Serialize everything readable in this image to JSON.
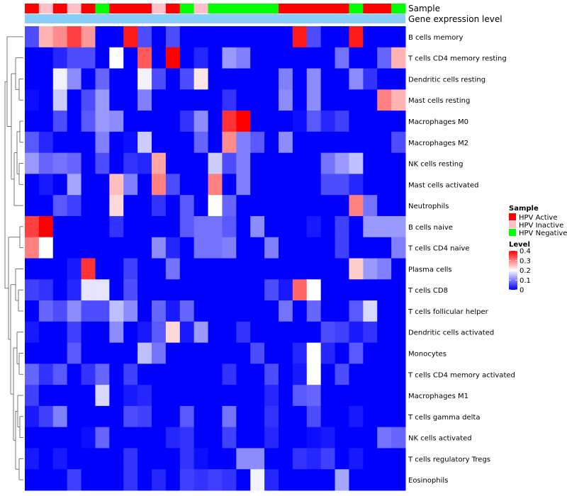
{
  "chart_data": {
    "type": "heatmap",
    "title": "",
    "annotation_labels": [
      "Sample",
      "Gene expression level"
    ],
    "sample_groups": [
      "A",
      "I",
      "A",
      "I",
      "A",
      "N",
      "A",
      "A",
      "A",
      "I",
      "A",
      "N",
      "I",
      "N",
      "N",
      "N",
      "N",
      "N",
      "A",
      "A",
      "A",
      "A",
      "A",
      "N",
      "A",
      "A",
      "N"
    ],
    "expression_bar_color": "#87cefa",
    "rows": [
      "B cells memory",
      "T cells CD4 memory resting",
      "Dendritic cells resting",
      "Mast cells resting",
      "Macrophages M0",
      "Macrophages M2",
      "NK cells resting",
      "Mast cells activated",
      "Neutrophils",
      "B cells naive",
      "T cells CD4 naive",
      "Plasma cells",
      "T cells CD8",
      "T cells follicular helper",
      "Dendritic cells activated",
      "Monocytes",
      "T cells CD4 memory activated",
      "Macrophages M1",
      "T cells gamma delta",
      "NK cells activated",
      "T cells regulatory  Tregs",
      "Eosinophils"
    ],
    "values": [
      [
        0.06,
        0.26,
        0.29,
        0.35,
        0.28,
        0,
        0,
        0.38,
        0.06,
        0,
        0.06,
        0,
        0,
        0,
        0,
        0,
        0,
        0,
        0,
        0.38,
        0.06,
        0,
        0,
        0.38,
        0,
        0,
        0
      ],
      [
        0,
        0,
        0.03,
        0.06,
        0.06,
        0,
        0.2,
        0,
        0.33,
        0,
        0.4,
        0,
        0.03,
        0,
        0.12,
        0.1,
        0,
        0,
        0,
        0,
        0,
        0,
        0.09,
        0,
        0,
        0.08,
        0.26
      ],
      [
        0,
        0,
        0.19,
        0.11,
        0,
        0.08,
        0,
        0,
        0.19,
        0.06,
        0,
        0.06,
        0.22,
        0,
        0,
        0,
        0,
        0,
        0.1,
        0,
        0.11,
        0,
        0,
        0.11,
        0.04,
        0,
        0
      ],
      [
        0.01,
        0,
        0.16,
        0,
        0.06,
        0.12,
        0,
        0,
        0.1,
        0,
        0,
        0,
        0,
        0,
        0.04,
        0,
        0,
        0,
        0.11,
        0,
        0.11,
        0,
        0,
        0,
        0,
        0.3,
        0.26
      ],
      [
        0,
        0,
        0.06,
        0,
        0.07,
        0.12,
        0.11,
        0,
        0,
        0,
        0,
        0.04,
        0.11,
        0,
        0.36,
        0.4,
        0,
        0,
        0,
        0.01,
        0.07,
        0.03,
        0.05,
        0,
        0,
        0,
        0
      ],
      [
        0.07,
        0.03,
        0,
        0,
        0,
        0.1,
        0,
        0.01,
        0.16,
        0,
        0,
        0,
        0.08,
        0,
        0.29,
        0.1,
        0.07,
        0,
        0.11,
        0,
        0,
        0,
        0,
        0,
        0,
        0,
        0.06
      ],
      [
        0.12,
        0.08,
        0.09,
        0.08,
        0,
        0.06,
        0,
        0.04,
        0.03,
        0.27,
        0,
        0,
        0,
        0.16,
        0.06,
        0.1,
        0,
        0,
        0,
        0,
        0,
        0.09,
        0.12,
        0.15,
        0,
        0,
        0
      ],
      [
        0,
        0.02,
        0,
        0.13,
        0,
        0,
        0.25,
        0.1,
        0,
        0.3,
        0.06,
        0,
        0,
        0.3,
        0,
        0.1,
        0,
        0,
        0,
        0,
        0,
        0.06,
        0.06,
        0.03,
        0,
        0,
        0
      ],
      [
        0,
        0,
        0.07,
        0.05,
        0,
        0,
        0.23,
        0,
        0,
        0.04,
        0,
        0.07,
        0,
        0.2,
        0.08,
        0,
        0,
        0,
        0,
        0,
        0,
        0,
        0,
        0.3,
        0.09,
        0,
        0
      ],
      [
        0.35,
        0.4,
        0,
        0,
        0,
        0,
        0.04,
        0,
        0,
        0,
        0,
        0.07,
        0.09,
        0.09,
        0.07,
        0,
        0.11,
        0,
        0,
        0,
        0.02,
        0,
        0.05,
        0,
        0.12,
        0.12,
        0.12
      ],
      [
        0.3,
        0.2,
        0,
        0,
        0,
        0,
        0,
        0,
        0,
        0.11,
        0.03,
        0,
        0.09,
        0.09,
        0.1,
        0,
        0,
        0.1,
        0,
        0,
        0,
        0,
        0.05,
        0,
        0,
        0,
        0.1
      ],
      [
        0,
        0,
        0,
        0.02,
        0.36,
        0,
        0,
        0.05,
        0,
        0,
        0.09,
        0,
        0,
        0,
        0,
        0,
        0,
        0,
        0,
        0,
        0,
        0,
        0,
        0.24,
        0.12,
        0.1,
        0
      ],
      [
        0.05,
        0.04,
        0,
        0.03,
        0.18,
        0.18,
        0,
        0.06,
        0,
        0,
        0,
        0,
        0,
        0,
        0,
        0,
        0,
        0.06,
        0.02,
        0.32,
        0.2,
        0,
        0,
        0,
        0,
        0,
        0
      ],
      [
        0,
        0.08,
        0.06,
        0.11,
        0.06,
        0.06,
        0.15,
        0.11,
        0,
        0.08,
        0.02,
        0.08,
        0,
        0,
        0,
        0,
        0,
        0,
        0.09,
        0,
        0.08,
        0,
        0,
        0.07,
        0.17,
        0,
        0
      ],
      [
        0.02,
        0,
        0,
        0.05,
        0,
        0,
        0.11,
        0,
        0.02,
        0.07,
        0.23,
        0.02,
        0.12,
        0,
        0,
        0.04,
        0,
        0,
        0,
        0,
        0,
        0.06,
        0.05,
        0.02,
        0.04,
        0,
        0
      ],
      [
        0,
        0,
        0,
        0.07,
        0,
        0,
        0,
        0,
        0.15,
        0.09,
        0,
        0,
        0,
        0,
        0,
        0,
        0.06,
        0,
        0,
        0.03,
        0.2,
        0.03,
        0,
        0.07,
        0,
        0,
        0
      ],
      [
        0.08,
        0.04,
        0.07,
        0,
        0.04,
        0.08,
        0,
        0.05,
        0,
        0,
        0,
        0,
        0,
        0,
        0.04,
        0,
        0,
        0.06,
        0,
        0.02,
        0.2,
        0,
        0.06,
        0,
        0,
        0,
        0
      ],
      [
        0.05,
        0,
        0,
        0,
        0,
        0.17,
        0,
        0.02,
        0.03,
        0,
        0,
        0,
        0,
        0,
        0,
        0,
        0,
        0.03,
        0,
        0.07,
        0.08,
        0,
        0,
        0,
        0,
        0,
        0
      ],
      [
        0.02,
        0.05,
        0.1,
        0,
        0,
        0,
        0,
        0.06,
        0.05,
        0,
        0,
        0.07,
        0,
        0,
        0.09,
        0,
        0,
        0.04,
        0,
        0,
        0.06,
        0,
        0,
        0.02,
        0,
        0,
        0
      ],
      [
        0,
        0,
        0,
        0,
        0.01,
        0.08,
        0,
        0,
        0,
        0,
        0.03,
        0.04,
        0,
        0,
        0.05,
        0,
        0,
        0.03,
        0,
        0,
        0.01,
        0.02,
        0,
        0,
        0,
        0.09,
        0.08
      ],
      [
        0.02,
        0,
        0.02,
        0,
        0,
        0,
        0,
        0.04,
        0,
        0,
        0,
        0.04,
        0.01,
        0,
        0,
        0.11,
        0.11,
        0,
        0,
        0.04,
        0.03,
        0.05,
        0,
        0.02,
        0,
        0,
        0
      ],
      [
        0,
        0,
        0,
        0.05,
        0,
        0,
        0,
        0.04,
        0,
        0.03,
        0,
        0.05,
        0.04,
        0.05,
        0.04,
        0,
        0.19,
        0.03,
        0,
        0,
        0,
        0,
        0.13,
        0,
        0,
        0,
        0
      ]
    ],
    "legend": {
      "sample_title": "Sample",
      "sample_items": [
        {
          "key": "A",
          "label": "HPV Active",
          "color": "#ff0000"
        },
        {
          "key": "I",
          "label": "HPV Inactive",
          "color": "#ffc0cb"
        },
        {
          "key": "N",
          "label": "HPV Negative",
          "color": "#00ff00"
        }
      ],
      "level_title": "Level",
      "level_ticks": [
        "0.4",
        "0.3",
        "0.2",
        "0.1",
        "0"
      ],
      "level_range": [
        0,
        0.4
      ]
    },
    "color_scale": {
      "low": "#0000ff",
      "mid": "#ffffff",
      "high": "#ff0000",
      "mid_value": 0.2
    }
  }
}
